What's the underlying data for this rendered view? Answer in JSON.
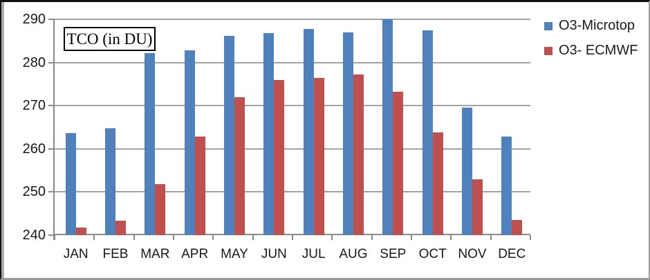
{
  "chart_data": {
    "type": "bar",
    "title_box": "TCO (in DU)",
    "categories": [
      "JAN",
      "FEB",
      "MAR",
      "APR",
      "MAY",
      "JUN",
      "JUL",
      "AUG",
      "SEP",
      "OCT",
      "NOV",
      "DEC"
    ],
    "series": [
      {
        "name": "O3-Microtop",
        "color": "#4F81BD",
        "values": [
          263.7,
          264.8,
          282.1,
          282.8,
          286.1,
          286.8,
          287.7,
          286.9,
          290.0,
          287.4,
          269.6,
          262.9
        ]
      },
      {
        "name": "O3- ECMWF",
        "color": "#C0504D",
        "values": [
          241.7,
          243.4,
          251.8,
          262.9,
          271.9,
          276.0,
          276.5,
          277.2,
          273.3,
          263.8,
          252.9,
          243.5
        ]
      }
    ],
    "ylabel": "",
    "xlabel": "",
    "ylim": [
      240,
      290
    ],
    "yticks": [
      240,
      250,
      260,
      270,
      280,
      290
    ],
    "grid": true,
    "legend_position": "top-right",
    "gridline_color": "#a2a2a2",
    "axis_color": "#8a8a8a",
    "text_color": "#191919"
  }
}
